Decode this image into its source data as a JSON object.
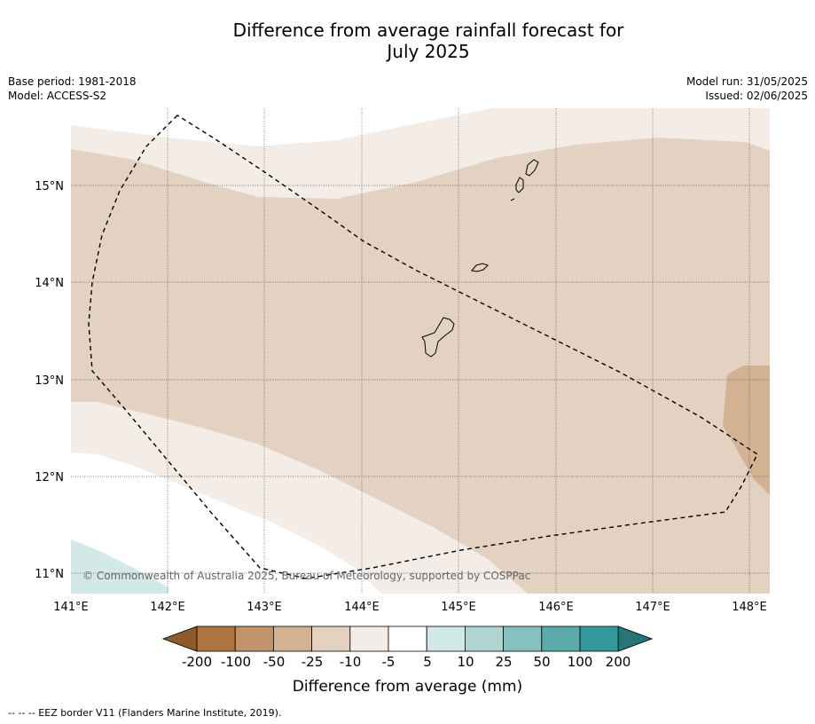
{
  "header": {
    "title_line1": "Difference from average rainfall forecast for",
    "title_line2": "July 2025",
    "base_period": "Base period: 1981-2018",
    "model": "Model: ACCESS-S2",
    "model_run": "Model run: 31/05/2025",
    "issued": "Issued: 02/06/2025"
  },
  "map": {
    "lat_ticks": [
      "15°N",
      "14°N",
      "13°N",
      "12°N",
      "11°N"
    ],
    "lon_ticks": [
      "141°E",
      "142°E",
      "143°E",
      "144°E",
      "145°E",
      "146°E",
      "147°E",
      "148°E"
    ],
    "copyright": "© Commonwealth of Australia 2025, Bureau of Meteorology, supported by COSPPac"
  },
  "colorbar": {
    "tick_labels": [
      "-200",
      "-100",
      "-50",
      "-25",
      "-10",
      "-5",
      "5",
      "10",
      "25",
      "50",
      "100",
      "200"
    ],
    "colors": [
      "#8f5a2a",
      "#ad7640",
      "#c0936a",
      "#d3b292",
      "#e3d1c1",
      "#f4ede7",
      "#ffffff",
      "#d3e9e8",
      "#b0d4d2",
      "#86c1bf",
      "#5aabaa",
      "#34999a",
      "#287575"
    ],
    "label": "Difference from average (mm)"
  },
  "footnote": "--  --  -- EEZ border V11 (Flanders Marine Institute, 2019)."
}
